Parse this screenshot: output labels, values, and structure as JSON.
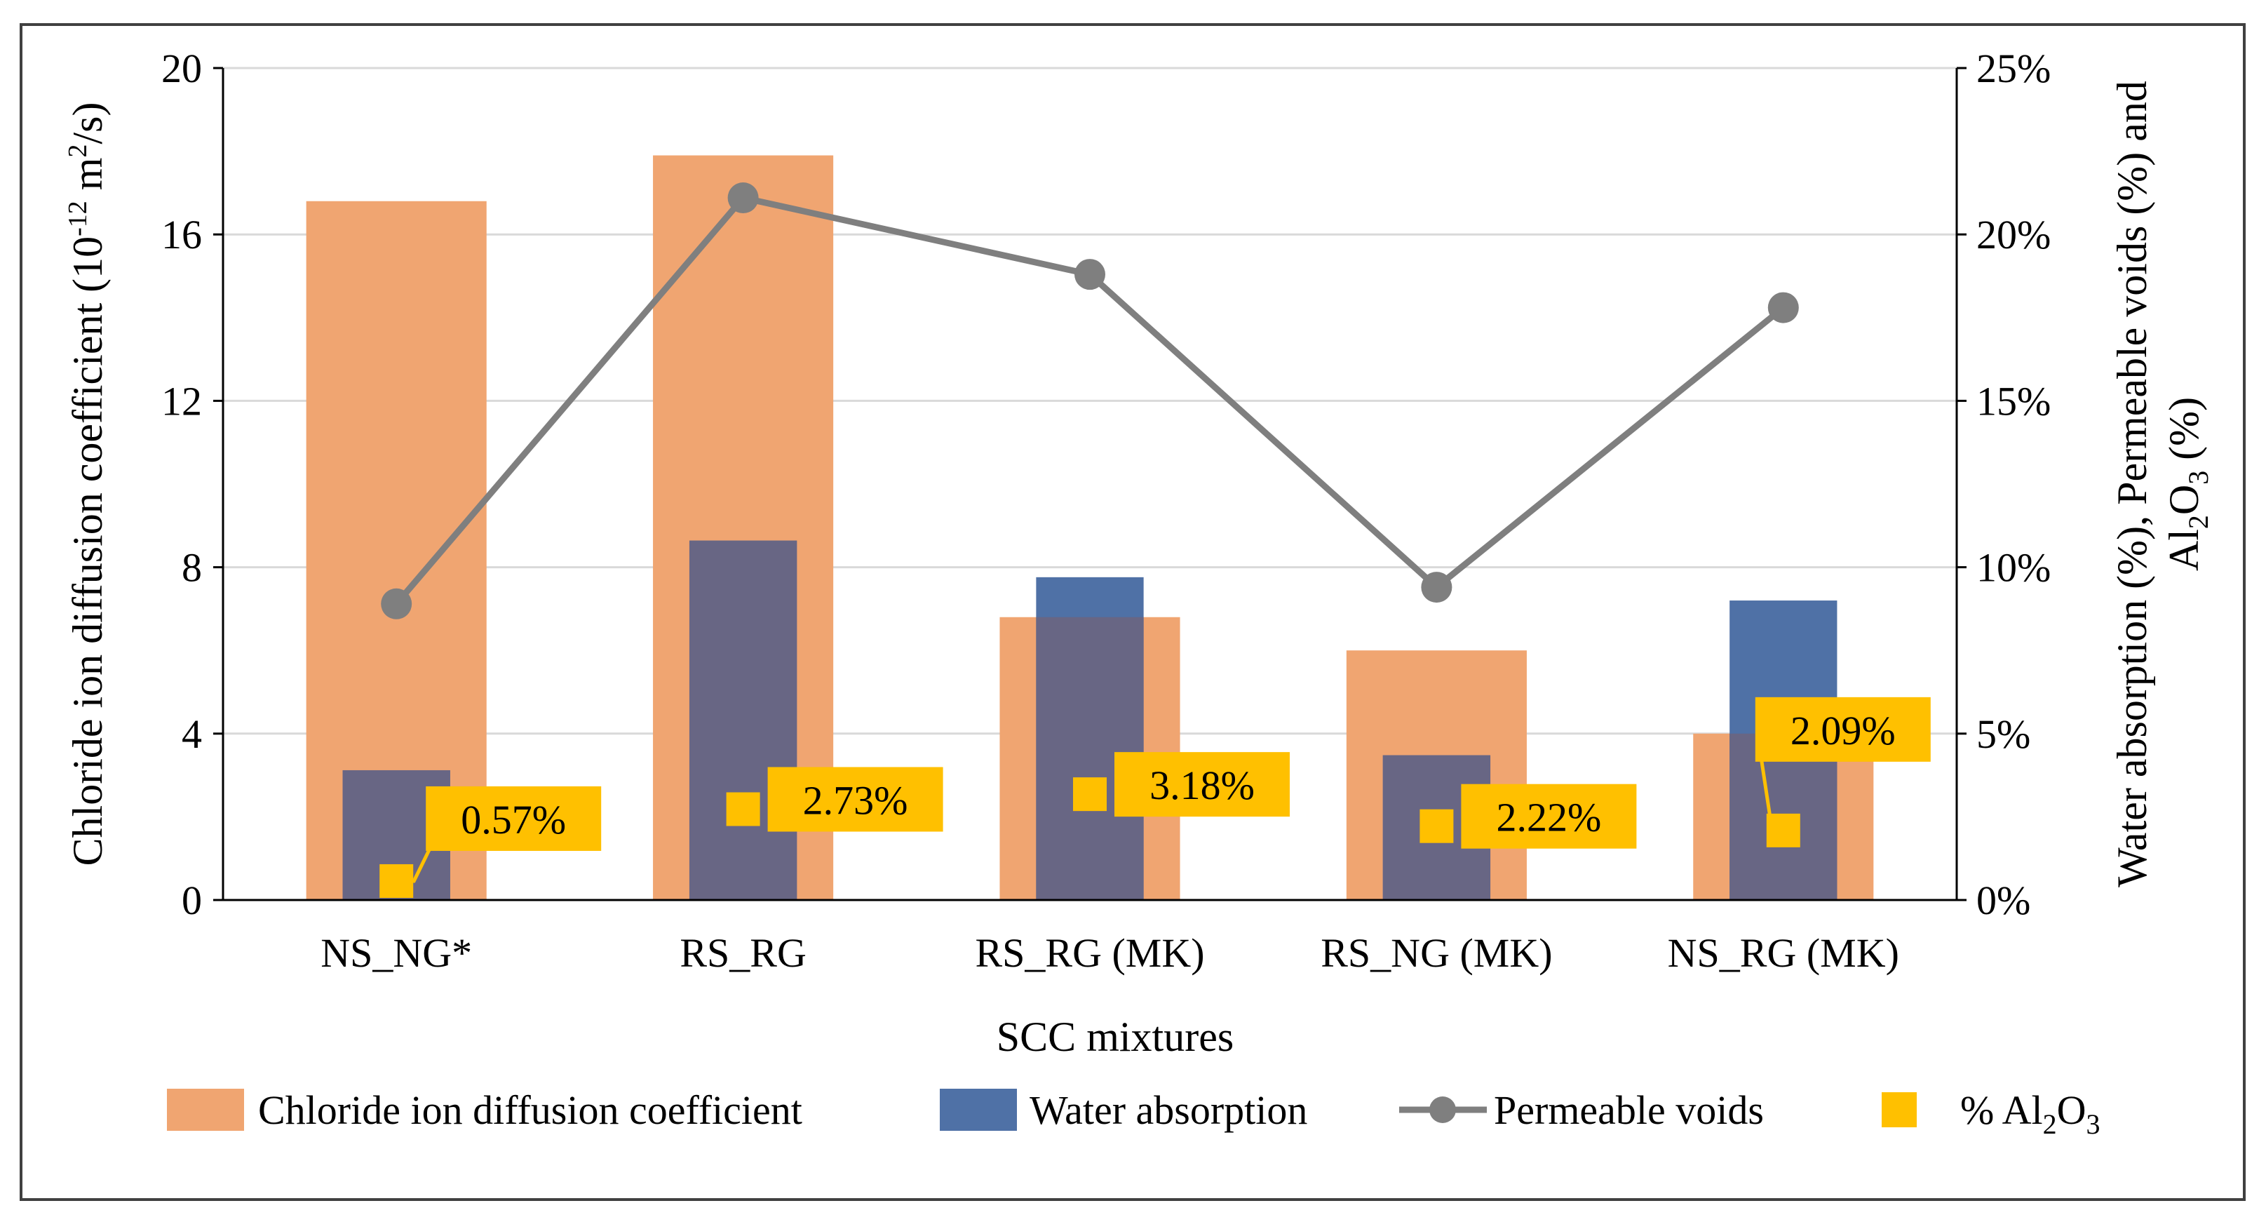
{
  "chart_data": {
    "type": "bar",
    "x_title": "SCC mixtures",
    "categories": [
      "NS_NG*",
      "RS_RG",
      "RS_RG (MK)",
      "RS_NG (MK)",
      "NS_RG (MK)"
    ],
    "y_left": {
      "title_main": "Chloride ion diffusion coefficient (10",
      "title_sup1": "-12",
      "title_mid": " m",
      "title_sup2": "2",
      "title_end": "/s)",
      "range": [
        0,
        20
      ],
      "ticks": [
        0,
        4,
        8,
        12,
        16,
        20
      ],
      "tick_labels": [
        "0",
        "4",
        "8",
        "12",
        "16",
        "20"
      ]
    },
    "y_right": {
      "title_line1": "Water absorption (%), Permeable voids (%) and",
      "title_line2_a": "Al",
      "title_line2_sub1": "2",
      "title_line2_b": "O",
      "title_line2_sub2": "3",
      "title_line2_c": " (%)",
      "range": [
        0,
        25
      ],
      "ticks": [
        0,
        5,
        10,
        15,
        20,
        25
      ],
      "tick_labels": [
        "0%",
        "5%",
        "10%",
        "15%",
        "20%",
        "25%"
      ]
    },
    "series": [
      {
        "name": "Chloride ion diffusion coefficient",
        "kind": "bar",
        "axis": "left",
        "color": "#F0A571",
        "values": [
          16.8,
          17.9,
          6.8,
          6.0,
          4.0
        ]
      },
      {
        "name": "Water absorption",
        "kind": "bar",
        "axis": "right",
        "color": "#4F71A6",
        "overlap_color": "#686684",
        "values": [
          3.9,
          10.8,
          9.7,
          4.35,
          9.0
        ]
      },
      {
        "name": "Permeable voids",
        "kind": "line",
        "axis": "right",
        "color": "#7F7F7F",
        "values": [
          8.9,
          21.1,
          18.8,
          9.4,
          17.8
        ]
      },
      {
        "name": "% Al2O3",
        "kind": "scatter",
        "axis": "right",
        "color": "#FFC000",
        "values": [
          0.57,
          2.73,
          3.18,
          2.22,
          2.09
        ],
        "labels": [
          "0.57%",
          "2.73%",
          "3.18%",
          "2.22%",
          "2.09%"
        ]
      }
    ],
    "legend": {
      "position": "bottom",
      "items": [
        {
          "label": "Chloride ion diffusion coefficient"
        },
        {
          "label": "Water absorption"
        },
        {
          "label": "Permeable voids"
        },
        {
          "label_a": "% Al",
          "label_sub1": "2",
          "label_b": "O",
          "label_sub2": "3"
        }
      ]
    },
    "grid": true
  }
}
